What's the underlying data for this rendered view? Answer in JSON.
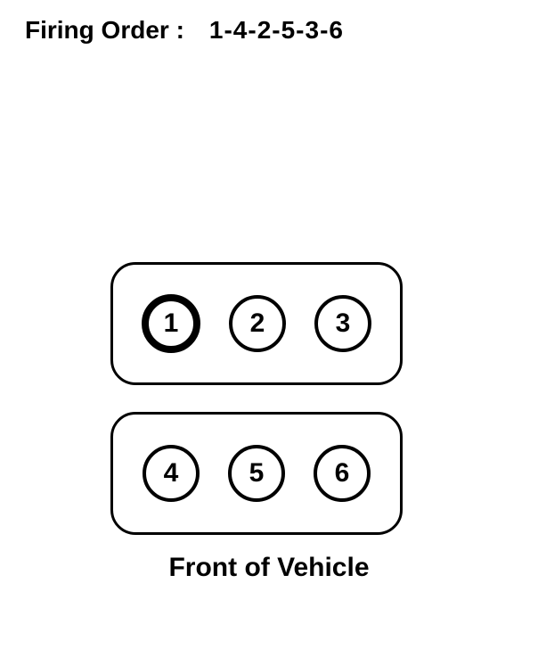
{
  "diagram": {
    "type": "infographic",
    "title_label": "Firing Order :",
    "title_value": "1-4-2-5-3-6",
    "footer": "Front of Vehicle",
    "background_color": "#ffffff",
    "border_color": "#000000",
    "text_color": "#000000",
    "title_fontsize": 28,
    "cylinder_fontsize": 30,
    "footer_fontsize": 30,
    "bank_border_width": 3,
    "bank_border_radius": 28,
    "cylinder_normal_border_width": 4,
    "cylinder_emphasis_border_width": 8,
    "cylinder_diameter": 64,
    "banks": [
      {
        "position": "top",
        "cylinders": [
          {
            "label": "1",
            "emphasis": true
          },
          {
            "label": "2",
            "emphasis": false
          },
          {
            "label": "3",
            "emphasis": false
          }
        ]
      },
      {
        "position": "bottom",
        "cylinders": [
          {
            "label": "4",
            "emphasis": false
          },
          {
            "label": "5",
            "emphasis": false
          },
          {
            "label": "6",
            "emphasis": false
          }
        ]
      }
    ]
  }
}
